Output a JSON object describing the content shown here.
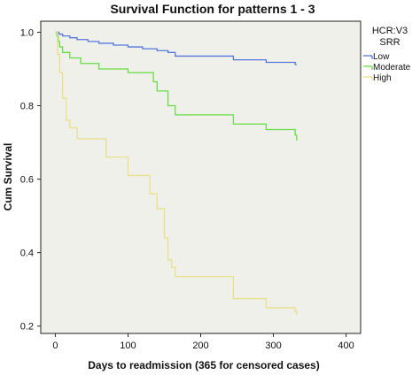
{
  "chart_data": {
    "type": "line",
    "step": true,
    "title": "Survival Function for patterns 1 - 3",
    "xlabel": "Days to readmission (365 for censored cases)",
    "ylabel": "Cum Survival",
    "xlim": [
      -20,
      420
    ],
    "ylim": [
      0.18,
      1.03
    ],
    "xticks": [
      0,
      100,
      200,
      300,
      400
    ],
    "yticks": [
      0.2,
      0.4,
      0.6,
      0.8,
      1.0
    ],
    "ytick_labels": [
      "0.2",
      "0.4",
      "0.6",
      "0.8",
      "1.0"
    ],
    "grid": false,
    "background_color": "#f0f0eb",
    "legend": {
      "title_lines": [
        "HCR:V3",
        "SRR"
      ],
      "placement": "right"
    },
    "series": [
      {
        "name": "Low",
        "color": "#5577dd",
        "x": [
          0,
          5,
          10,
          20,
          30,
          45,
          60,
          80,
          100,
          120,
          140,
          155,
          165,
          245,
          290,
          330,
          332
        ],
        "y": [
          1.0,
          0.995,
          0.99,
          0.985,
          0.98,
          0.975,
          0.97,
          0.965,
          0.96,
          0.955,
          0.95,
          0.945,
          0.935,
          0.925,
          0.918,
          0.912,
          0.912
        ]
      },
      {
        "name": "Moderate",
        "color": "#66dd44",
        "x": [
          0,
          2,
          4,
          6,
          10,
          20,
          35,
          60,
          100,
          135,
          140,
          155,
          165,
          245,
          290,
          330,
          332
        ],
        "y": [
          1.0,
          0.99,
          0.975,
          0.96,
          0.945,
          0.93,
          0.915,
          0.9,
          0.89,
          0.865,
          0.84,
          0.8,
          0.775,
          0.75,
          0.735,
          0.72,
          0.705
        ]
      },
      {
        "name": "High",
        "color": "#e8e08a",
        "x": [
          0,
          3,
          6,
          10,
          15,
          20,
          30,
          70,
          100,
          130,
          140,
          150,
          155,
          160,
          165,
          245,
          290,
          330,
          332
        ],
        "y": [
          1.0,
          0.94,
          0.89,
          0.82,
          0.76,
          0.74,
          0.71,
          0.66,
          0.61,
          0.56,
          0.52,
          0.44,
          0.38,
          0.36,
          0.335,
          0.275,
          0.25,
          0.24,
          0.23
        ]
      }
    ]
  }
}
